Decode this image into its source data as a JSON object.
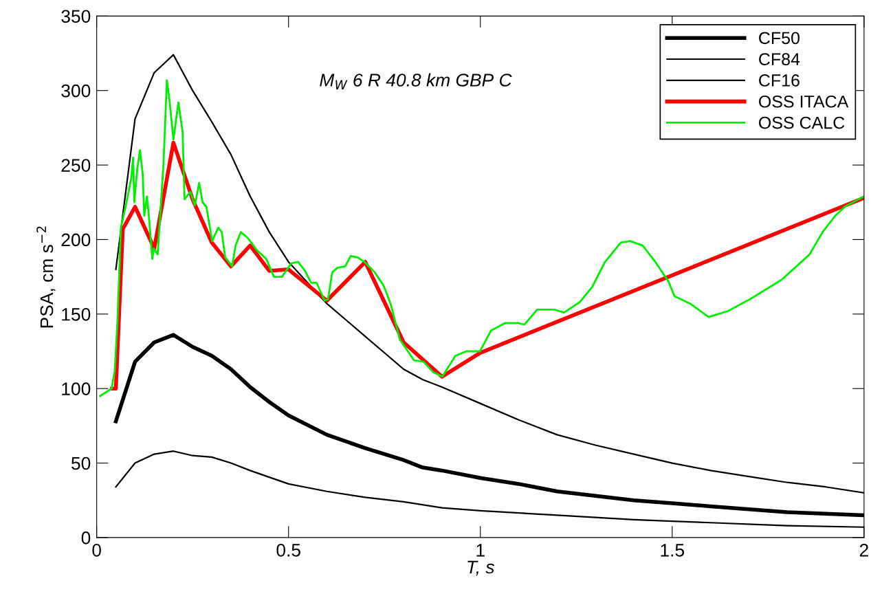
{
  "chart_data": {
    "type": "line",
    "xlabel": "T, s",
    "ylabel": "PSA, cm s$^{−2}$",
    "annotations": [
      "M$_{W}$ 6 R 40.8 km GBP C"
    ],
    "xlim": [
      0,
      2
    ],
    "ylim": [
      0,
      350
    ],
    "xticks": [
      0,
      0.5,
      1,
      1.5,
      2
    ],
    "yticks": [
      0,
      50,
      100,
      150,
      200,
      250,
      300,
      350
    ],
    "grid": false,
    "legend": "top right",
    "marker": "none",
    "line_style": "solid",
    "series": [
      {
        "name": "CF50",
        "color": "#000000",
        "x": [
          0.05,
          0.1,
          0.15,
          0.2,
          0.25,
          0.3,
          0.35,
          0.4,
          0.45,
          0.5,
          0.6,
          0.7,
          0.8,
          0.85,
          0.9,
          1.0,
          1.1,
          1.2,
          1.3,
          1.4,
          1.5,
          1.6,
          1.7,
          1.8,
          1.9,
          2.0
        ],
        "values": [
          78,
          118,
          131,
          136,
          128,
          122,
          113,
          101,
          91,
          82,
          69,
          60,
          52,
          47,
          45,
          40,
          36,
          31,
          28,
          25,
          23,
          21,
          19,
          17,
          16,
          15
        ]
      },
      {
        "name": "CF84",
        "color": "#000000",
        "x": [
          0.05,
          0.1,
          0.15,
          0.2,
          0.25,
          0.3,
          0.35,
          0.4,
          0.45,
          0.5,
          0.6,
          0.7,
          0.8,
          0.85,
          0.9,
          1.0,
          1.1,
          1.2,
          1.3,
          1.4,
          1.5,
          1.6,
          1.7,
          1.8,
          1.9,
          2.0
        ],
        "values": [
          180,
          281,
          312,
          324,
          300,
          279,
          257,
          229,
          205,
          185,
          157,
          135,
          113,
          106,
          101,
          90,
          79,
          69,
          62,
          56,
          50,
          45,
          41,
          37,
          34,
          30
        ]
      },
      {
        "name": "CF16",
        "color": "#000000",
        "x": [
          0.05,
          0.1,
          0.15,
          0.2,
          0.25,
          0.3,
          0.35,
          0.4,
          0.5,
          0.6,
          0.7,
          0.8,
          0.9,
          1.0,
          1.2,
          1.4,
          1.5,
          1.6,
          1.8,
          2.0
        ],
        "values": [
          34,
          50,
          56,
          58,
          55,
          54,
          50,
          45,
          36,
          31,
          27,
          24,
          20,
          18,
          15,
          12,
          11,
          10,
          8,
          7
        ]
      },
      {
        "name": "OSS ITACA",
        "color": "#ff0000",
        "x": [
          0.04,
          0.05,
          0.068,
          0.1,
          0.15,
          0.2,
          0.25,
          0.3,
          0.35,
          0.4,
          0.45,
          0.5,
          0.6,
          0.7,
          0.8,
          0.9,
          1.0,
          2.0
        ],
        "values": [
          100,
          100,
          207,
          222,
          194,
          265,
          227,
          198,
          182,
          196,
          179,
          180,
          159,
          185,
          131,
          108,
          124,
          228
        ]
      },
      {
        "name": "OSS CALC",
        "color": "#00ee00",
        "x": [
          0.009,
          0.027,
          0.039,
          0.047,
          0.054,
          0.063,
          0.077,
          0.09,
          0.095,
          0.098,
          0.106,
          0.113,
          0.12,
          0.124,
          0.131,
          0.136,
          0.145,
          0.149,
          0.159,
          0.174,
          0.183,
          0.19,
          0.2,
          0.213,
          0.224,
          0.229,
          0.244,
          0.256,
          0.267,
          0.276,
          0.286,
          0.301,
          0.317,
          0.326,
          0.335,
          0.353,
          0.362,
          0.376,
          0.394,
          0.417,
          0.442,
          0.462,
          0.483,
          0.507,
          0.525,
          0.543,
          0.559,
          0.573,
          0.594,
          0.603,
          0.614,
          0.627,
          0.648,
          0.662,
          0.68,
          0.698,
          0.725,
          0.748,
          0.766,
          0.79,
          0.827,
          0.852,
          0.877,
          0.901,
          0.935,
          0.963,
          0.999,
          1.028,
          1.065,
          1.098,
          1.115,
          1.148,
          1.193,
          1.218,
          1.259,
          1.291,
          1.325,
          1.366,
          1.39,
          1.423,
          1.456,
          1.49,
          1.506,
          1.547,
          1.595,
          1.645,
          1.703,
          1.785,
          1.858,
          1.892,
          1.925,
          1.95,
          2.0
        ],
        "values": [
          95,
          98,
          100,
          112,
          144,
          208,
          224,
          241,
          255,
          225,
          248,
          260,
          244,
          216,
          229,
          216,
          187,
          194,
          190,
          250,
          307,
          293,
          267,
          292,
          272,
          227,
          232,
          223,
          238,
          225,
          222,
          199,
          208,
          205,
          188,
          182,
          196,
          205,
          201,
          193,
          187,
          175,
          175,
          184,
          185,
          179,
          171,
          171,
          159,
          160,
          178,
          181,
          182,
          189,
          188,
          185,
          178,
          169,
          157,
          133,
          119,
          118,
          111,
          108,
          122,
          125,
          125,
          139,
          144,
          144,
          143,
          153,
          153,
          151,
          158,
          168,
          185,
          198,
          199,
          196,
          185,
          172,
          162,
          157,
          148,
          152,
          160,
          173,
          190,
          205,
          216,
          222,
          229
        ]
      }
    ]
  }
}
